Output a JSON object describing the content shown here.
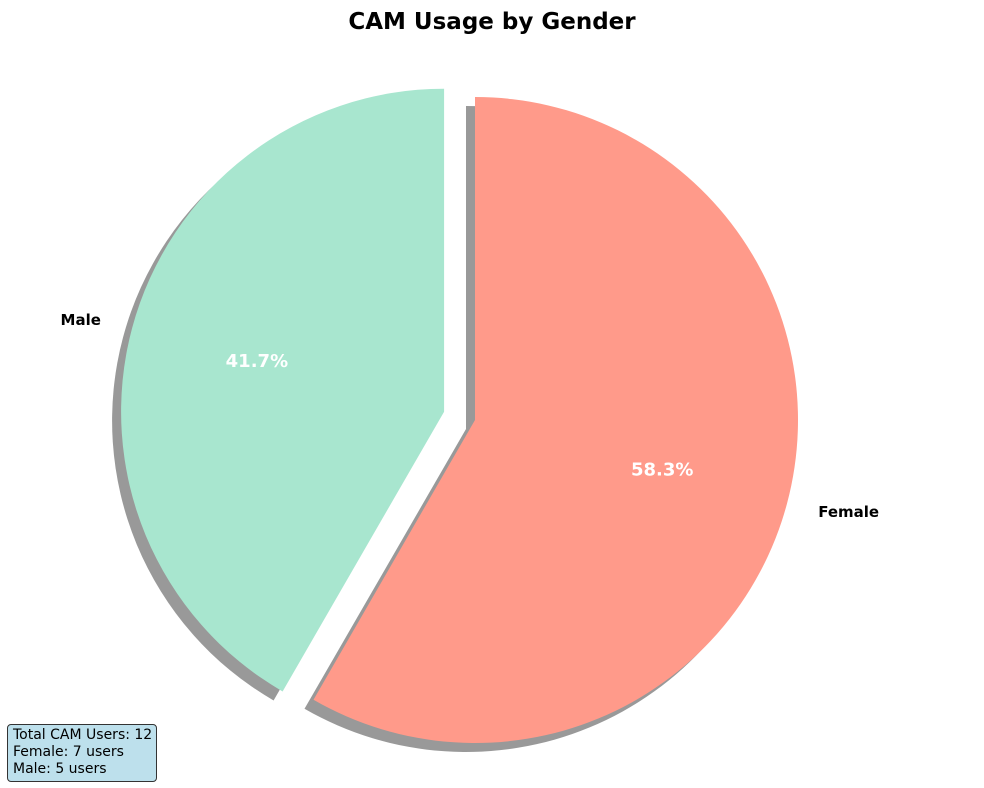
{
  "chart_data": {
    "type": "pie",
    "title": "CAM Usage by Gender",
    "slices": [
      {
        "label": "Female",
        "value": 7,
        "percent_label": "58.3%",
        "color": "#ff9a8a",
        "exploded": false
      },
      {
        "label": "Male",
        "value": 5,
        "percent_label": "41.7%",
        "color": "#a8e6cf",
        "exploded": true
      }
    ],
    "start_angle_deg": 90,
    "direction": "clockwise",
    "shadow": true,
    "summary": {
      "lines": [
        "Total CAM Users: 12",
        "Female: 7 users",
        "Male: 5 users"
      ]
    }
  }
}
